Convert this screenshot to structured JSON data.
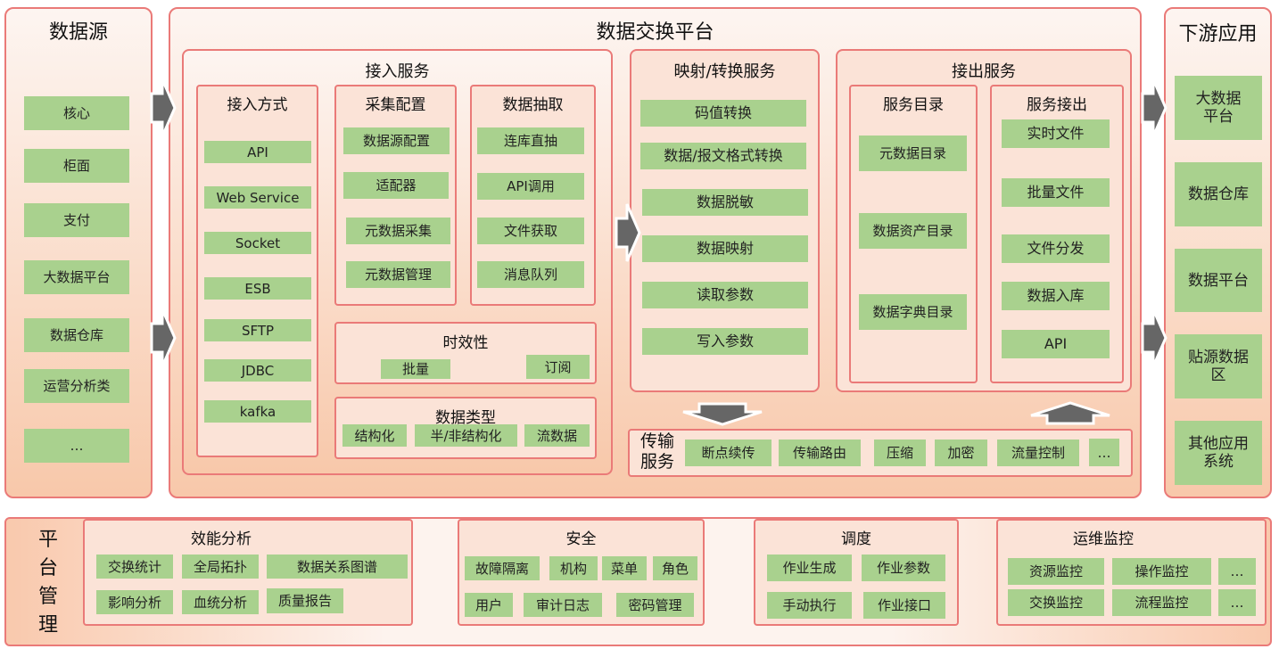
{
  "sources": {
    "title": "数据源",
    "items": [
      "核心",
      "柜面",
      "支付",
      "大数据平台",
      "数据仓库",
      "运营分析类",
      "…"
    ]
  },
  "platform": {
    "title": "数据交换平台",
    "ingest": {
      "title": "接入服务",
      "methods": {
        "title": "接入方式",
        "items": [
          "API",
          "Web Service",
          "Socket",
          "ESB",
          "SFTP",
          "JDBC",
          "kafka"
        ]
      },
      "collect": {
        "title": "采集配置",
        "items": [
          "数据源配置",
          "适配器",
          "元数据采集",
          "元数据管理"
        ]
      },
      "extract": {
        "title": "数据抽取",
        "items": [
          "连库直抽",
          "API调用",
          "文件获取",
          "消息队列"
        ]
      },
      "timeliness": {
        "title": "时效性",
        "items": [
          "批量",
          "订阅"
        ]
      },
      "datatype": {
        "title": "数据类型",
        "items": [
          "结构化",
          "半/非结构化",
          "流数据"
        ]
      }
    },
    "mapping": {
      "title": "映射/转换服务",
      "items": [
        "码值转换",
        "数据/报文格式转换",
        "数据脱敏",
        "数据映射",
        "读取参数",
        "写入参数"
      ]
    },
    "output": {
      "title": "接出服务",
      "catalog": {
        "title": "服务目录",
        "items": [
          "元数据目录",
          "数据资产目录",
          "数据字典目录"
        ]
      },
      "egress": {
        "title": "服务接出",
        "items": [
          "实时文件",
          "批量文件",
          "文件分发",
          "数据入库",
          "API"
        ]
      }
    },
    "transport": {
      "title": "传输服务",
      "items": [
        "断点续传",
        "传输路由",
        "压缩",
        "加密",
        "流量控制",
        "…"
      ]
    }
  },
  "downstream": {
    "title": "下游应用",
    "items": [
      "大数据平台",
      "数据仓库",
      "数据平台",
      "贴源数据区",
      "其他应用系统"
    ]
  },
  "management": {
    "title": "平台管理",
    "perf": {
      "title": "效能分析",
      "items": [
        "交换统计",
        "全局拓扑",
        "数据关系图谱",
        "影响分析",
        "血统分析",
        "质量报告"
      ]
    },
    "security": {
      "title": "安全",
      "items": [
        "故障隔离",
        "机构",
        "菜单",
        "角色",
        "用户",
        "审计日志",
        "密码管理"
      ]
    },
    "schedule": {
      "title": "调度",
      "items": [
        "作业生成",
        "作业参数",
        "手动执行",
        "作业接口"
      ]
    },
    "ops": {
      "title": "运维监控",
      "items": [
        "资源监控",
        "操作监控",
        "…",
        "交换监控",
        "流程监控",
        "…"
      ]
    }
  },
  "colors": {
    "border": "#ea7a78",
    "box": "#a9d18e",
    "arrow": "#666666"
  }
}
